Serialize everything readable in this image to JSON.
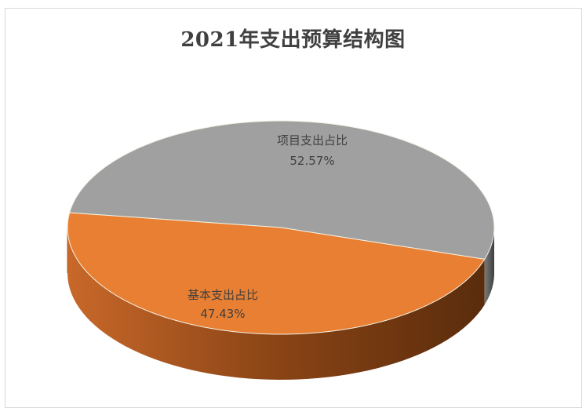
{
  "chart_data": {
    "type": "pie",
    "title": "2021年支出预算结构图",
    "slices": [
      {
        "category": "项目支出占比",
        "value": 52.57,
        "value_label": "52.57%",
        "color": "#a0a0a0"
      },
      {
        "category": "基本支出占比",
        "value": 47.43,
        "value_label": "47.43%",
        "color": "#e97f32"
      }
    ],
    "style": "3d",
    "legend": "none",
    "data_labels": "category-and-percent"
  }
}
